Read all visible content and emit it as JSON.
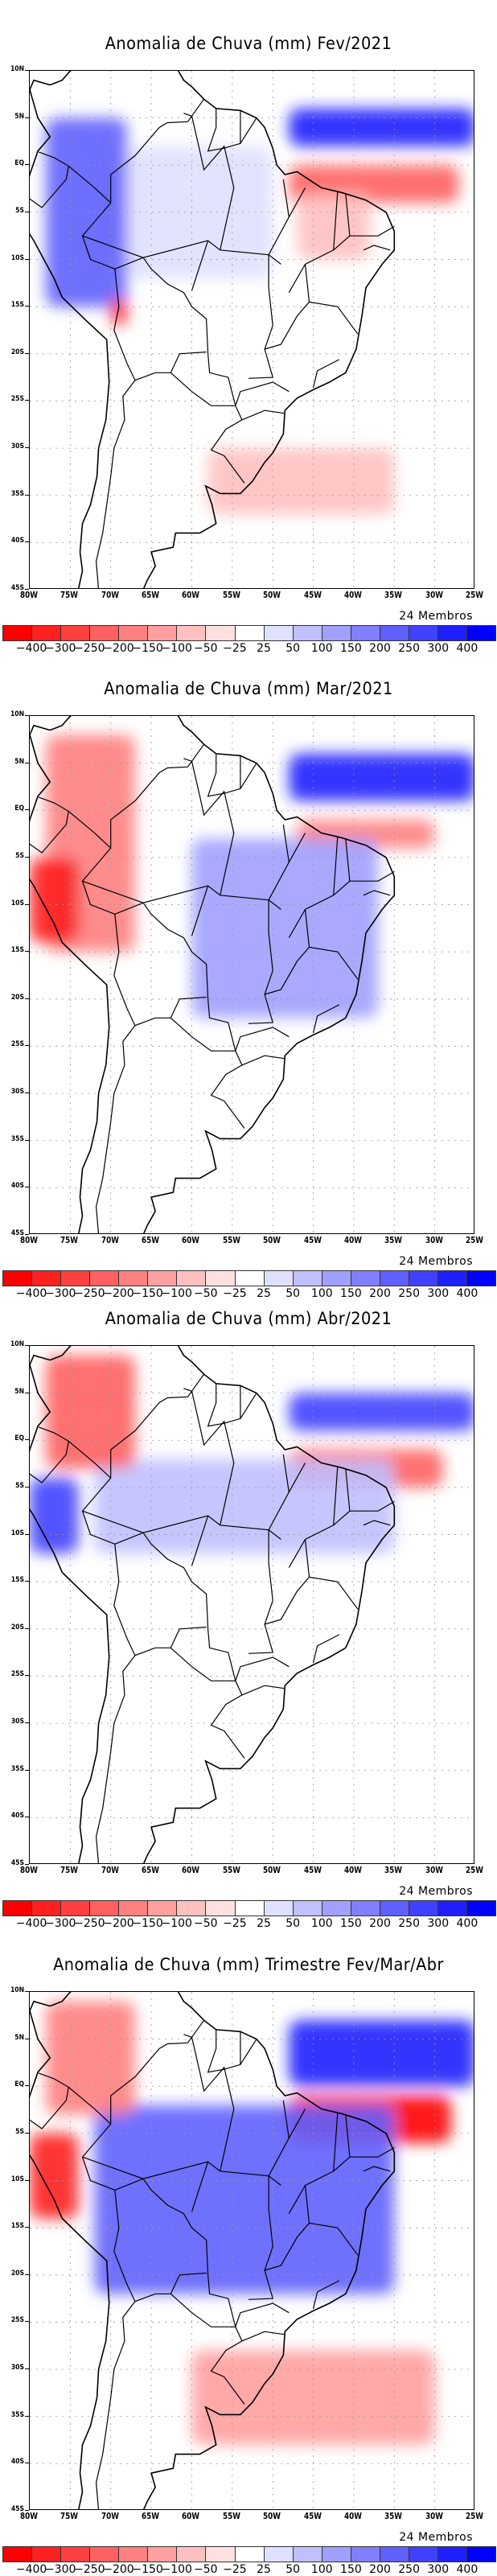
{
  "figure": {
    "variable": "Anomalia de Chuva (mm)",
    "members_label": "24 Membros",
    "lat_labels": [
      "10N",
      "5N",
      "EQ",
      "5S",
      "10S",
      "15S",
      "20S",
      "25S",
      "30S",
      "35S",
      "40S",
      "45S"
    ],
    "lon_labels": [
      "80W",
      "75W",
      "70W",
      "65W",
      "60W",
      "55W",
      "50W",
      "45W",
      "40W",
      "35W",
      "30W",
      "25W"
    ],
    "colorbar": {
      "boundaries": [
        "-400",
        "-300",
        "-250",
        "-200",
        "-150",
        "-100",
        "-50",
        "-25",
        "25",
        "50",
        "100",
        "150",
        "200",
        "250",
        "300",
        "400"
      ],
      "colors": [
        "#ff0000",
        "#ff2020",
        "#ff4040",
        "#ff6060",
        "#ff8080",
        "#ffa0a0",
        "#ffc0c0",
        "#ffe0e0",
        "#ffffff",
        "#e0e0ff",
        "#c0c0ff",
        "#a0a0ff",
        "#8080ff",
        "#6060ff",
        "#4040ff",
        "#2020ff",
        "#0000ff"
      ]
    },
    "panels": [
      {
        "title": "Anomalia de Chuva (mm) Fev/2021",
        "period": "Fev/2021"
      },
      {
        "title": "Anomalia de Chuva (mm) Mar/2021",
        "period": "Mar/2021"
      },
      {
        "title": "Anomalia de Chuva (mm) Abr/2021",
        "period": "Abr/2021"
      },
      {
        "title": "Anomalia de Chuva (mm) Trimestre Fev/Mar/Abr",
        "period": "Trimestre Fev/Mar/Abr"
      }
    ]
  },
  "map_extent": {
    "lon_min": -80,
    "lon_max": -25,
    "lat_min": -45,
    "lat_max": 10
  },
  "anomaly_features": [
    [
      {
        "name": "atlantic-itcz-north-positive",
        "lon": [
          -48,
          -25
        ],
        "lat": [
          2,
          6
        ],
        "value": 400
      },
      {
        "name": "equatorial-atlantic-negative",
        "lon": [
          -48,
          -27
        ],
        "lat": [
          -4,
          0
        ],
        "value": -200
      },
      {
        "name": "north-brazil-coast-negative",
        "lon": [
          -47,
          -38
        ],
        "lat": [
          -10,
          -3
        ],
        "value": -50
      },
      {
        "name": "amazon-positive",
        "lon": [
          -73,
          -50
        ],
        "lat": [
          -12,
          2
        ],
        "value": 50
      },
      {
        "name": "peru-andes-positive",
        "lon": [
          -78,
          -68
        ],
        "lat": [
          -15,
          5
        ],
        "value": 250
      },
      {
        "name": "southern-andes-negative",
        "lon": [
          -70,
          -68
        ],
        "lat": [
          -17,
          -14
        ],
        "value": -300
      },
      {
        "name": "south-atlantic-negative-band",
        "lon": [
          -58,
          -35
        ],
        "lat": [
          -37,
          -30
        ],
        "value": -50
      }
    ],
    [
      {
        "name": "atlantic-itcz-north-positive",
        "lon": [
          -48,
          -25
        ],
        "lat": [
          1,
          6
        ],
        "value": 400
      },
      {
        "name": "equatorial-atlantic-negative",
        "lon": [
          -47,
          -30
        ],
        "lat": [
          -4,
          -1
        ],
        "value": -150
      },
      {
        "name": "brazil-central-positive",
        "lon": [
          -60,
          -37
        ],
        "lat": [
          -22,
          -3
        ],
        "value": 150
      },
      {
        "name": "northwest-negative",
        "lon": [
          -78,
          -67
        ],
        "lat": [
          -15,
          8
        ],
        "value": -150
      },
      {
        "name": "peru-coast-negative",
        "lon": [
          -80,
          -74
        ],
        "lat": [
          -14,
          -5
        ],
        "value": -300
      }
    ],
    [
      {
        "name": "atlantic-itcz-north-positive",
        "lon": [
          -48,
          -25
        ],
        "lat": [
          1,
          5
        ],
        "value": 300
      },
      {
        "name": "equatorial-atlantic-negative",
        "lon": [
          -48,
          -29
        ],
        "lat": [
          -5,
          -1
        ],
        "value": -200
      },
      {
        "name": "amazon-positive",
        "lon": [
          -72,
          -35
        ],
        "lat": [
          -12,
          -2
        ],
        "value": 100
      },
      {
        "name": "colombia-negative",
        "lon": [
          -78,
          -67
        ],
        "lat": [
          -3,
          9
        ],
        "value": -200
      },
      {
        "name": "peru-coast-positive",
        "lon": [
          -80,
          -74
        ],
        "lat": [
          -12,
          -4
        ],
        "value": 300
      }
    ],
    [
      {
        "name": "atlantic-itcz-north-positive",
        "lon": [
          -48,
          -25
        ],
        "lat": [
          0,
          7
        ],
        "value": 400
      },
      {
        "name": "equatorial-atlantic-negative",
        "lon": [
          -48,
          -28
        ],
        "lat": [
          -6,
          -1
        ],
        "value": -400
      },
      {
        "name": "brazil-wide-positive",
        "lon": [
          -72,
          -35
        ],
        "lat": [
          -22,
          -2
        ],
        "value": 250
      },
      {
        "name": "colombia-negative",
        "lon": [
          -78,
          -67
        ],
        "lat": [
          -3,
          9
        ],
        "value": -150
      },
      {
        "name": "peru-coast-negative",
        "lon": [
          -80,
          -74
        ],
        "lat": [
          -14,
          -5
        ],
        "value": -300
      },
      {
        "name": "south-atlantic-negative-band",
        "lon": [
          -60,
          -30
        ],
        "lat": [
          -38,
          -28
        ],
        "value": -100
      }
    ]
  ]
}
